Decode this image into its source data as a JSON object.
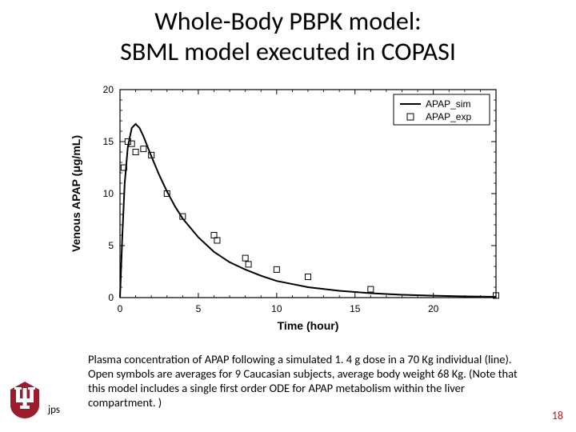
{
  "title_line1": "Whole-Body PBPK model:",
  "title_line2": "SBML model executed in COPASI",
  "caption": "Plasma concentration of APAP following a simulated 1. 4 g dose in a 70 Kg individual (line).  Open symbols are averages for 9 Caucasian subjects, average body weight 68 Kg. (Note that this model includes a single first order ODE for APAP metabolism within the liver compartment. )",
  "footer_left": "jps",
  "page_number": "18",
  "chart": {
    "type": "line+scatter",
    "xlabel": "Time (hour)",
    "ylabel": "Venous APAP (μg/mL)",
    "xlim": [
      0,
      24
    ],
    "ylim": [
      0,
      20
    ],
    "xticks": [
      0,
      5,
      10,
      15,
      20
    ],
    "yticks": [
      0,
      5,
      10,
      15,
      20
    ],
    "axis_color": "#000000",
    "tick_fontsize": 12,
    "label_fontsize": 14,
    "label_fontweight": "bold",
    "background_color": "#ffffff",
    "line_series": {
      "name": "APAP_sim",
      "color": "#000000",
      "width": 2,
      "points": [
        [
          0,
          0
        ],
        [
          0.15,
          6
        ],
        [
          0.3,
          11
        ],
        [
          0.5,
          14.5
        ],
        [
          0.75,
          16.3
        ],
        [
          1.0,
          16.7
        ],
        [
          1.25,
          16.3
        ],
        [
          1.5,
          15.5
        ],
        [
          2.0,
          13.6
        ],
        [
          2.5,
          11.8
        ],
        [
          3.0,
          10.2
        ],
        [
          3.5,
          8.8
        ],
        [
          4.0,
          7.6
        ],
        [
          5.0,
          5.8
        ],
        [
          6.0,
          4.4
        ],
        [
          7.0,
          3.4
        ],
        [
          8.0,
          2.7
        ],
        [
          9.0,
          2.1
        ],
        [
          10.0,
          1.6
        ],
        [
          12.0,
          1.0
        ],
        [
          14.0,
          0.65
        ],
        [
          16.0,
          0.42
        ],
        [
          18.0,
          0.27
        ],
        [
          20.0,
          0.18
        ],
        [
          22.0,
          0.12
        ],
        [
          24.0,
          0.08
        ]
      ]
    },
    "scatter_series": {
      "name": "APAP_exp",
      "marker": "open-square",
      "marker_size": 7,
      "marker_stroke": "#000000",
      "marker_fill": "none",
      "points": [
        [
          0.25,
          12.5
        ],
        [
          0.5,
          15.0
        ],
        [
          0.75,
          14.8
        ],
        [
          1.0,
          14.0
        ],
        [
          1.5,
          14.3
        ],
        [
          2.0,
          13.7
        ],
        [
          3.0,
          10.0
        ],
        [
          4.0,
          7.8
        ],
        [
          6.0,
          6.0
        ],
        [
          6.2,
          5.5
        ],
        [
          8.0,
          3.8
        ],
        [
          8.2,
          3.2
        ],
        [
          10.0,
          2.7
        ],
        [
          12.0,
          2.0
        ],
        [
          16.0,
          0.8
        ],
        [
          24.0,
          0.2
        ]
      ]
    },
    "legend": {
      "position": "top-right",
      "items": [
        {
          "type": "line",
          "label": "APAP_sim",
          "color": "#000000",
          "width": 2
        },
        {
          "type": "marker",
          "label": "APAP_exp",
          "marker": "open-square",
          "stroke": "#000000"
        }
      ],
      "box_stroke": "#000000",
      "fontsize": 12
    }
  },
  "logo": {
    "primary_color": "#9b1c2c",
    "secondary_color": "#ffffff",
    "shape": "IU-trident"
  }
}
